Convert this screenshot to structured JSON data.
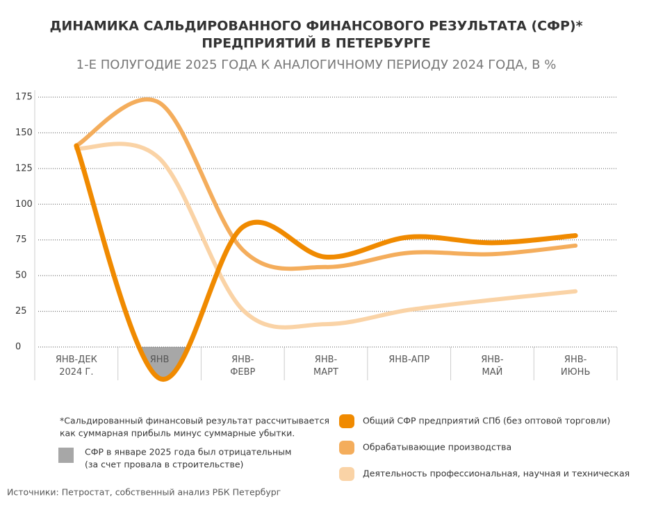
{
  "chart_data": {
    "type": "line",
    "title_lines": [
      "ДИНАМИКА САЛЬДИРОВАННОГО ФИНАНСОВОГО РЕЗУЛЬТАТА (СФР)*",
      "ПРЕДПРИЯТИЙ В ПЕТЕРБУРГЕ"
    ],
    "subtitle": "1-Е ПОЛУГОДИЕ 2025 ГОДА К АНАЛОГИЧНОМУ ПЕРИОДУ 2024 ГОДА, В %",
    "categories": [
      "ЯНВ-ДЕК 2024 Г.",
      "ЯНВ",
      "ЯНВ-ФЕВР",
      "ЯНВ-МАРТ",
      "ЯНВ-АПР",
      "ЯНВ-МАЙ",
      "ЯНВ-ИЮНЬ"
    ],
    "series": [
      {
        "name": "Общий СФР предприятий СПб (без оптовой торговли)",
        "color": "#f08a00",
        "values": [
          141,
          -22,
          84,
          63,
          77,
          73,
          78
        ]
      },
      {
        "name": "Обрабатывающие производства",
        "color": "#f4ad5c",
        "values": [
          141,
          171,
          68,
          56,
          66,
          65,
          71
        ]
      },
      {
        "name": "Деятельность профессиональная, научная и техническая",
        "color": "#fad3a6",
        "values": [
          139,
          132,
          26,
          16,
          26,
          33,
          39
        ]
      }
    ],
    "ylim": [
      -22,
      175
    ],
    "yticks": [
      0,
      25,
      50,
      75,
      100,
      125,
      150,
      175
    ],
    "grid": true,
    "note_lines": [
      "*Сальдированный финансовый результат рассчитывается",
      "как суммарная прибыль минус суммарные убытки."
    ],
    "negative_note_lines": [
      "СФР в январе 2025 года был отрицательным",
      "(за счет провала в строительстве)"
    ],
    "source": "Источники: Петростат, собственный анализ РБК Петербург"
  }
}
